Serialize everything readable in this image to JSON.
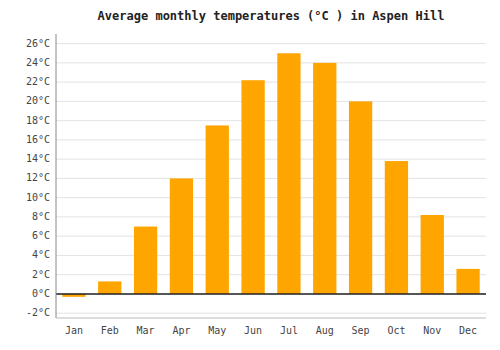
{
  "chart_data": {
    "type": "bar",
    "title": "Average monthly temperatures (°C ) in Aspen Hill",
    "categories": [
      "Jan",
      "Feb",
      "Mar",
      "Apr",
      "May",
      "Jun",
      "Jul",
      "Aug",
      "Sep",
      "Oct",
      "Nov",
      "Dec"
    ],
    "values": [
      -0.3,
      1.3,
      7.0,
      12.0,
      17.5,
      22.2,
      25.0,
      24.0,
      20.0,
      13.8,
      8.2,
      2.6
    ],
    "color": "#FFA500",
    "ylim": [
      -2.5,
      27
    ],
    "yticks": [
      {
        "value": -2,
        "label": "-2°C"
      },
      {
        "value": 0,
        "label": "0°C"
      },
      {
        "value": 2,
        "label": "2°C"
      },
      {
        "value": 4,
        "label": "4°C"
      },
      {
        "value": 6,
        "label": "6°C"
      },
      {
        "value": 8,
        "label": "8°C"
      },
      {
        "value": 10,
        "label": "10°C"
      },
      {
        "value": 12,
        "label": "12°C"
      },
      {
        "value": 14,
        "label": "14°C"
      },
      {
        "value": 16,
        "label": "16°C"
      },
      {
        "value": 18,
        "label": "18°C"
      },
      {
        "value": 20,
        "label": "20°C"
      },
      {
        "value": 22,
        "label": "22°C"
      },
      {
        "value": 24,
        "label": "24°C"
      },
      {
        "value": 26,
        "label": "26°C"
      }
    ],
    "grid": true
  }
}
